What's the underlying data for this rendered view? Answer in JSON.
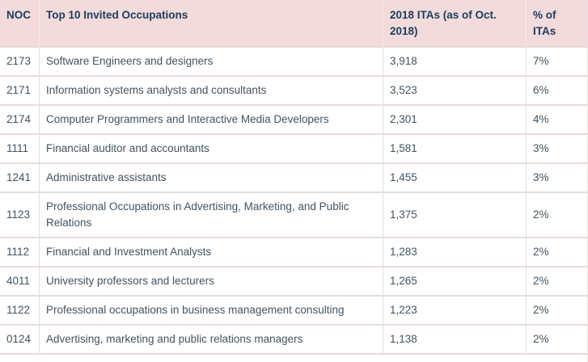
{
  "table": {
    "headers": [
      "NOC",
      "Top 10 Invited Occupations",
      "2018 ITAs (as of Oct. 2018)",
      "% of ITAs"
    ],
    "rows": [
      {
        "noc": "2173",
        "occupation": "Software Engineers and designers",
        "itas": "3,918",
        "pct": "7%"
      },
      {
        "noc": "2171",
        "occupation": "Information systems analysts and consultants",
        "itas": "3,523",
        "pct": "6%"
      },
      {
        "noc": "2174",
        "occupation": "Computer Programmers and Interactive Media Developers",
        "itas": "2,301",
        "pct": "4%"
      },
      {
        "noc": "1111",
        "occupation": "Financial auditor and accountants",
        "itas": "1,581",
        "pct": "3%"
      },
      {
        "noc": "1241",
        "occupation": "Administrative assistants",
        "itas": "1,455",
        "pct": "3%"
      },
      {
        "noc": "1123",
        "occupation": "Professional Occupations in Advertising, Marketing, and Public Relations",
        "itas": "1,375",
        "pct": "2%"
      },
      {
        "noc": "1112",
        "occupation": "Financial and Investment Analysts",
        "itas": "1,283",
        "pct": "2%"
      },
      {
        "noc": "4011",
        "occupation": "University professors and lecturers",
        "itas": "1,265",
        "pct": "2%"
      },
      {
        "noc": "1122",
        "occupation": "Professional occupations in business management consulting",
        "itas": "1,223",
        "pct": "2%"
      },
      {
        "noc": "0124",
        "occupation": "Advertising, marketing and public relations managers",
        "itas": "1,138",
        "pct": "2%"
      }
    ]
  },
  "colors": {
    "header_bg": "#f2dbda",
    "header_text": "#1d3c5e",
    "body_text": "#42535f",
    "row_border": "#e7dcdc",
    "column_border_body": "#dedede",
    "column_border_header": "#f6ebeb"
  },
  "chart_data": {
    "type": "table",
    "title": "Top 10 Invited Occupations - 2018 ITAs (as of Oct. 2018)",
    "columns": [
      "NOC",
      "Top 10 Invited Occupations",
      "2018 ITAs (as of Oct. 2018)",
      "% of ITAs"
    ],
    "rows": [
      [
        "2173",
        "Software Engineers and designers",
        3918,
        "7%"
      ],
      [
        "2171",
        "Information systems analysts and consultants",
        3523,
        "6%"
      ],
      [
        "2174",
        "Computer Programmers and Interactive Media Developers",
        2301,
        "4%"
      ],
      [
        "1111",
        "Financial auditor and accountants",
        1581,
        "3%"
      ],
      [
        "1241",
        "Administrative assistants",
        1455,
        "3%"
      ],
      [
        "1123",
        "Professional Occupations in Advertising, Marketing, and Public Relations",
        1375,
        "2%"
      ],
      [
        "1112",
        "Financial and Investment Analysts",
        1283,
        "2%"
      ],
      [
        "4011",
        "University professors and lecturers",
        1265,
        "2%"
      ],
      [
        "1122",
        "Professional occupations in business management consulting",
        1223,
        "2%"
      ],
      [
        "0124",
        "Advertising, marketing and public relations managers",
        1138,
        "2%"
      ]
    ]
  }
}
